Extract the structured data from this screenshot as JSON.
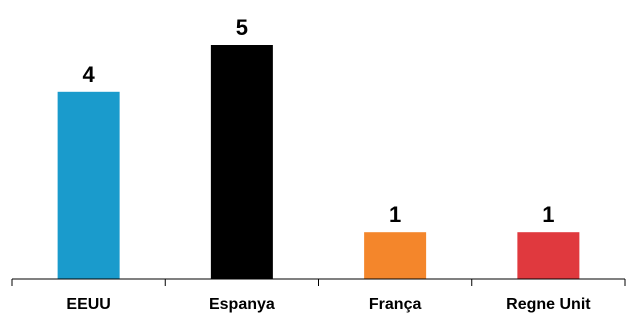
{
  "chart_data": {
    "type": "bar",
    "title": "",
    "xlabel": "",
    "ylabel": "",
    "categories": [
      "EEUU",
      "Espanya",
      "França",
      "Regne Unit"
    ],
    "values": [
      4,
      5,
      1,
      1
    ],
    "colors": [
      "#1a9bcc",
      "#000000",
      "#f4862b",
      "#e0393e"
    ],
    "data_labels": [
      "4",
      "5",
      "1",
      "1"
    ],
    "ylim": [
      0,
      5
    ],
    "grid": false,
    "legend": "none",
    "axis_color": "#000000"
  }
}
